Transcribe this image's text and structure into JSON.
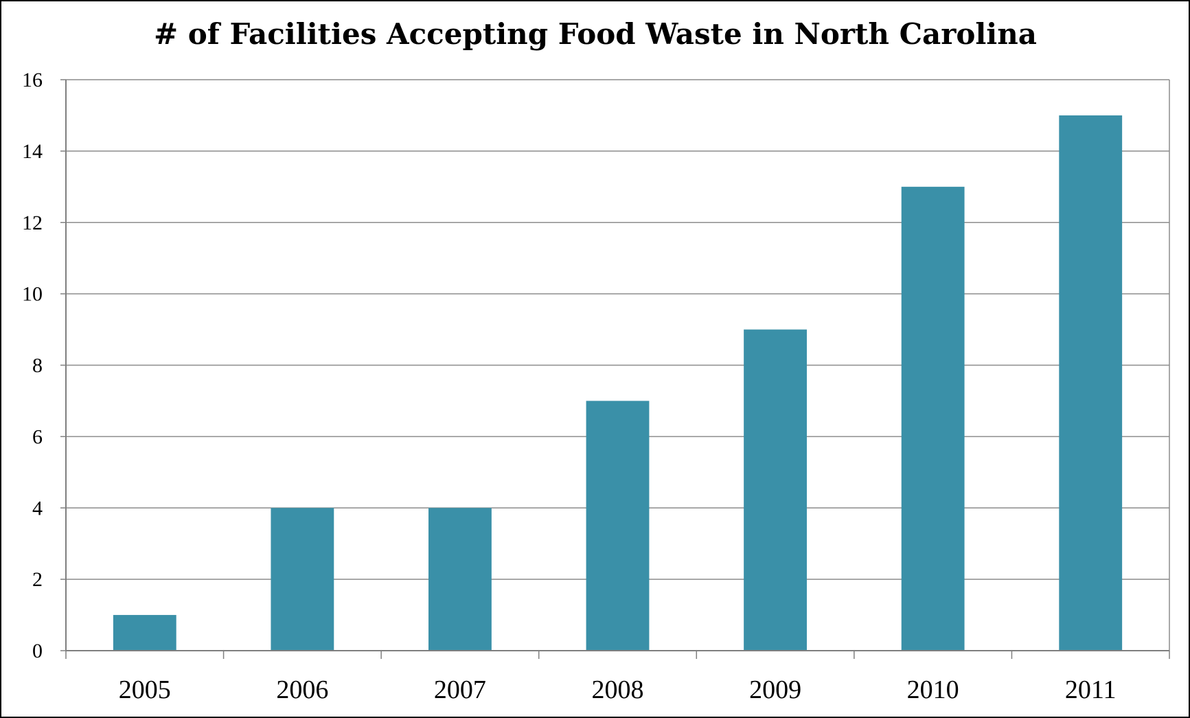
{
  "chart_data": {
    "type": "bar",
    "title": "# of Facilities Accepting Food Waste in North Carolina",
    "categories": [
      "2005",
      "2006",
      "2007",
      "2008",
      "2009",
      "2010",
      "2011"
    ],
    "values": [
      1,
      4,
      4,
      7,
      9,
      13,
      15
    ],
    "xlabel": "",
    "ylabel": "",
    "ylim": [
      0,
      16
    ],
    "yticks": [
      "0",
      "2",
      "4",
      "6",
      "8",
      "10",
      "12",
      "14",
      "16"
    ],
    "grid": true,
    "legend": "none",
    "colors": {
      "bar": "#3a90a8",
      "grid": "#8c8c8c",
      "axis": "#7f7f7f",
      "text": "#000000"
    }
  }
}
